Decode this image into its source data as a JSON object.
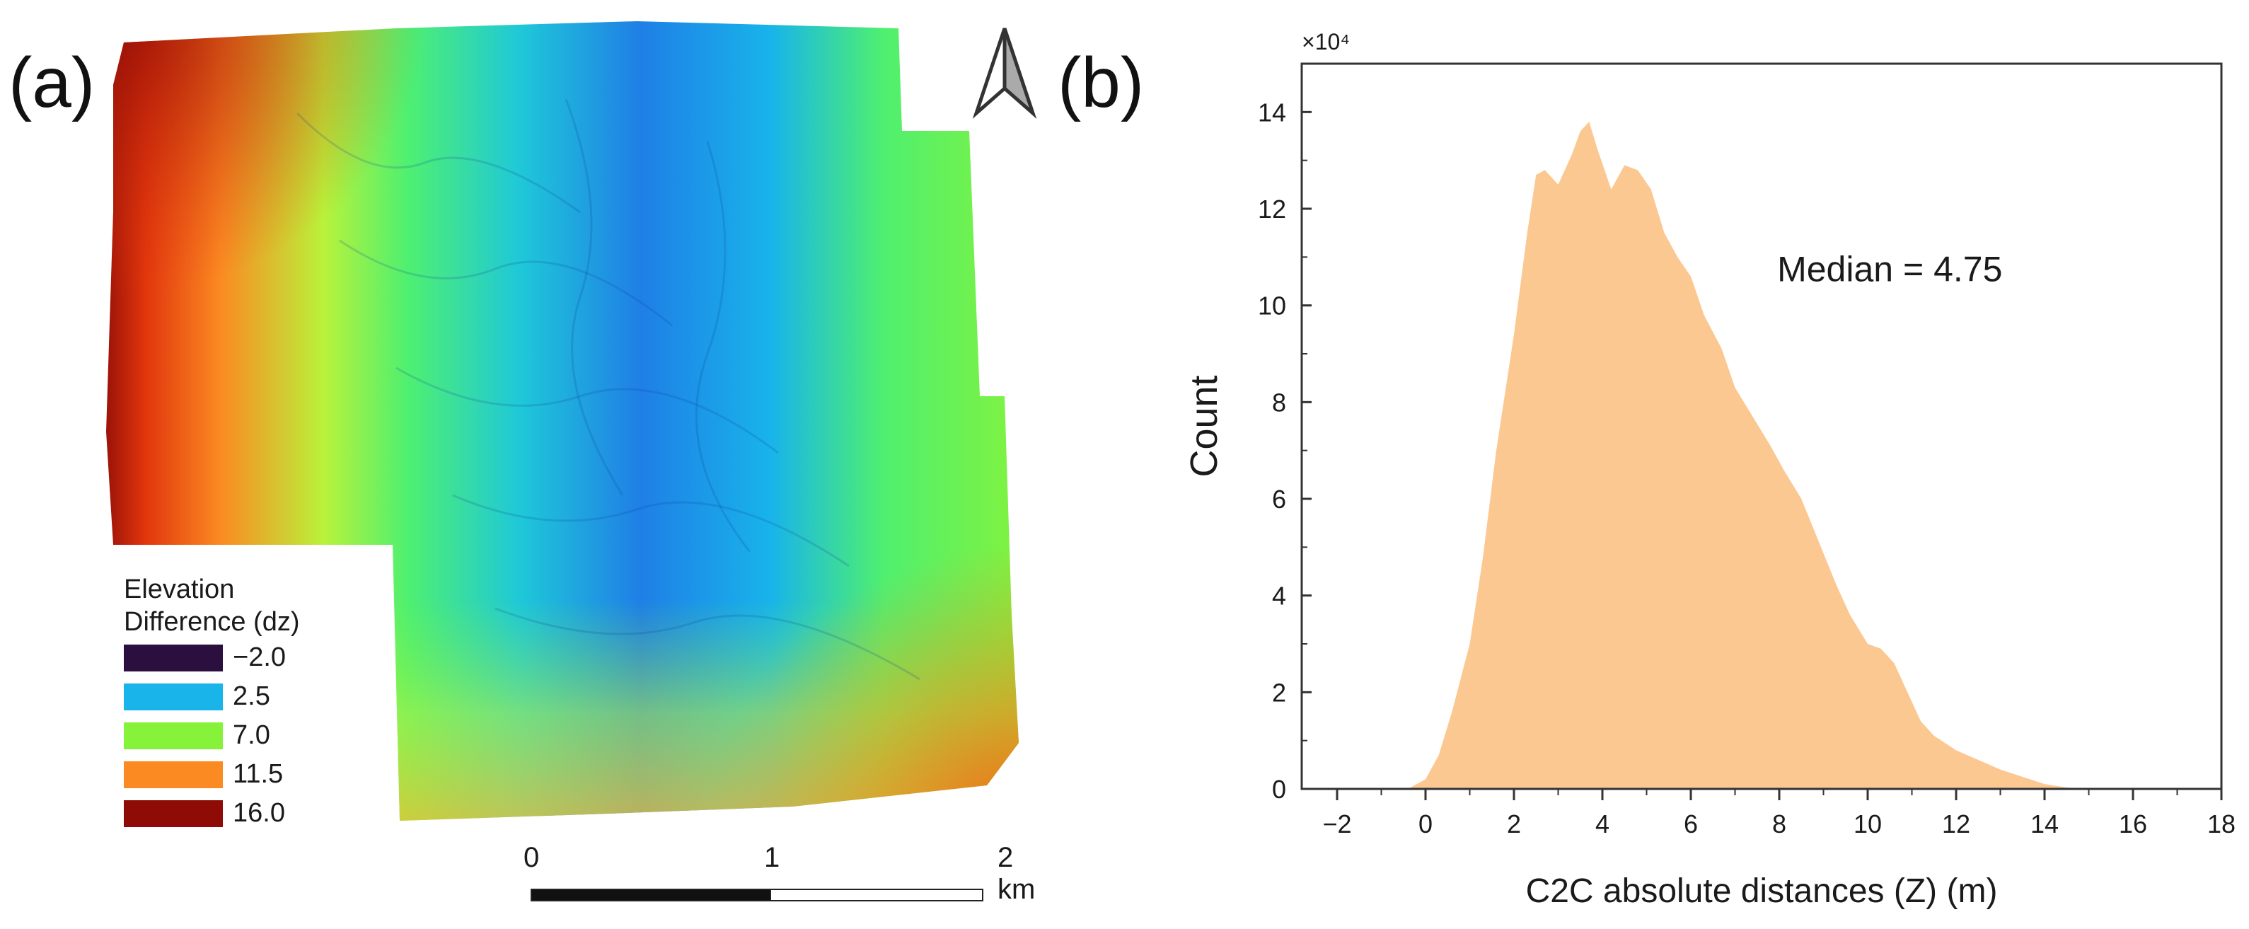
{
  "panels": {
    "a_label": "(a)",
    "b_label": "(b)"
  },
  "map": {
    "north_arrow_icon": "north-arrow-icon",
    "legend": {
      "title_line1": "Elevation",
      "title_line2": "Difference (dz)",
      "items": [
        {
          "label": "−2.0",
          "color": "#2b0f3f"
        },
        {
          "label": "2.5",
          "color": "#18b4ea"
        },
        {
          "label": "7.0",
          "color": "#86f23a"
        },
        {
          "label": "11.5",
          "color": "#fb8a22"
        },
        {
          "label": "16.0",
          "color": "#8f0c06"
        }
      ]
    },
    "scale_bar": {
      "tick0": "0",
      "tick1": "1",
      "tick2": "2 km"
    }
  },
  "chart_data": {
    "type": "histogram",
    "title": "",
    "xlabel": "C2C absolute distances (Z) (m)",
    "ylabel": "Count",
    "y_multiplier": "×10⁴",
    "annotation": "Median = 4.75",
    "xlim": [
      -2.8,
      18
    ],
    "ylim": [
      0,
      15
    ],
    "xticks": [
      -2,
      0,
      2,
      4,
      6,
      8,
      10,
      12,
      14,
      16,
      18
    ],
    "yticks": [
      0,
      2,
      4,
      6,
      8,
      10,
      12,
      14
    ],
    "fill_color": "#fcc891",
    "bins_x": [
      -0.4,
      0.0,
      0.3,
      0.6,
      1.0,
      1.3,
      1.6,
      2.0,
      2.3,
      2.5,
      2.7,
      3.0,
      3.3,
      3.5,
      3.7,
      3.9,
      4.2,
      4.5,
      4.8,
      5.1,
      5.4,
      5.7,
      6.0,
      6.3,
      6.7,
      7.0,
      7.4,
      7.8,
      8.1,
      8.5,
      8.9,
      9.3,
      9.6,
      10.0,
      10.3,
      10.6,
      10.9,
      11.2,
      11.5,
      12.0,
      12.5,
      13.0,
      13.5,
      14.0,
      14.5,
      15.0
    ],
    "bins_y": [
      0.0,
      0.2,
      0.7,
      1.6,
      3.0,
      4.8,
      7.0,
      9.4,
      11.5,
      12.7,
      12.8,
      12.5,
      13.1,
      13.6,
      13.8,
      13.2,
      12.4,
      12.9,
      12.8,
      12.4,
      11.5,
      11.0,
      10.6,
      9.8,
      9.1,
      8.3,
      7.7,
      7.1,
      6.6,
      6.0,
      5.1,
      4.2,
      3.6,
      3.0,
      2.9,
      2.6,
      2.0,
      1.4,
      1.1,
      0.8,
      0.6,
      0.4,
      0.25,
      0.1,
      0.03,
      0.0
    ]
  }
}
